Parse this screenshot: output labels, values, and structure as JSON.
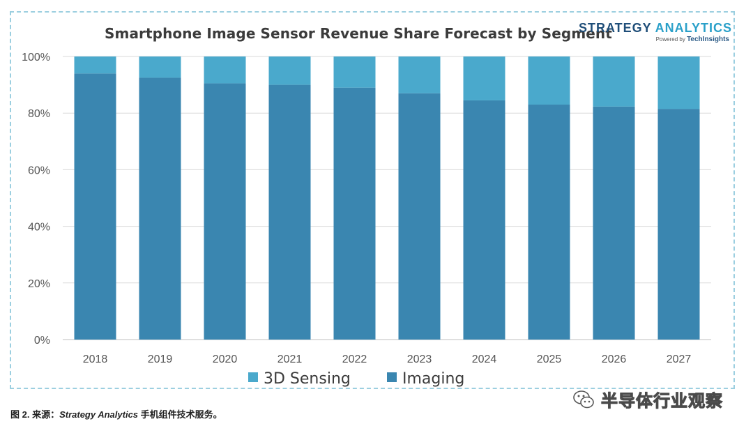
{
  "chart_data": {
    "type": "bar",
    "stacked": true,
    "title": "Smartphone Image Sensor Revenue Share Forecast by Segment",
    "xlabel": "",
    "ylabel": "",
    "ylim": [
      0,
      100
    ],
    "yticks": [
      "0%",
      "20%",
      "40%",
      "60%",
      "80%",
      "100%"
    ],
    "categories": [
      "2018",
      "2019",
      "2020",
      "2021",
      "2022",
      "2023",
      "2024",
      "2025",
      "2026",
      "2027"
    ],
    "series": [
      {
        "name": "Imaging",
        "color": "#3a86b0",
        "values": [
          94,
          92.5,
          90.5,
          90,
          89,
          87,
          84.5,
          83,
          82.3,
          81.5
        ]
      },
      {
        "name": "3D Sensing",
        "color": "#4aa9cc",
        "values": [
          6,
          7.5,
          9.5,
          10,
          11,
          13,
          15.5,
          17,
          17.7,
          18.5
        ]
      }
    ],
    "legend": [
      "3D Sensing",
      "Imaging"
    ],
    "legend_position": "bottom",
    "grid": true
  },
  "brand": {
    "name_part1": "STRATEGY",
    "name_part2": "ANALYTICS",
    "powered_prefix": "Powered by",
    "powered_name": "TechInsights"
  },
  "caption": {
    "prefix": "图 2. 来源：",
    "source": "Strategy Analytics",
    "suffix": " 手机组件技术服务。"
  },
  "watermark": {
    "text": "半导体行业观察",
    "icon": "wechat-icon"
  },
  "colors": {
    "frame_border": "#9ccfe0",
    "grid": "#d9d9d9"
  }
}
